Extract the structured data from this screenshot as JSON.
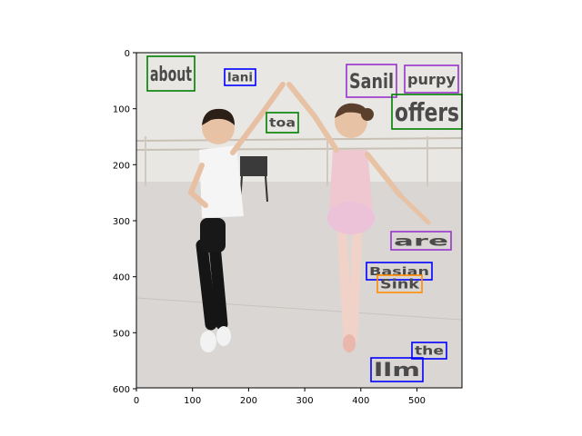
{
  "figure": {
    "x_ticks": [
      "0",
      "100",
      "200",
      "300",
      "400",
      "500"
    ],
    "y_ticks": [
      "0",
      "100",
      "200",
      "300",
      "400",
      "500",
      "600"
    ]
  },
  "photo": {
    "description_icon": "photo-of-children-dancing",
    "palette": {
      "floor": "#d7d5d3",
      "wall": "#e8e6e2",
      "barre": "#c9c1b6",
      "boy_shirt": "#f4f4f4",
      "boy_pants": "#1a1a1a",
      "girl_leotard": "#eec6cf",
      "skin": "#e8c2a5",
      "hair_dark": "#2b1f18",
      "hair_brown": "#5a3f2c"
    }
  },
  "words": [
    {
      "text": "about",
      "color": "#008000"
    },
    {
      "text": "lani",
      "color": "#0000ff"
    },
    {
      "text": "Sanil",
      "color": "#9933cc"
    },
    {
      "text": "purpy",
      "color": "#9933cc"
    },
    {
      "text": "toa",
      "color": "#008000"
    },
    {
      "text": "offers",
      "color": "#008000"
    },
    {
      "text": "are",
      "color": "#9933cc"
    },
    {
      "text": "Basian",
      "color": "#0000ff"
    },
    {
      "text": "Sink",
      "color": "#ff8c00"
    },
    {
      "text": "the",
      "color": "#0000ff"
    },
    {
      "text": "llm",
      "color": "#0000ff"
    }
  ]
}
